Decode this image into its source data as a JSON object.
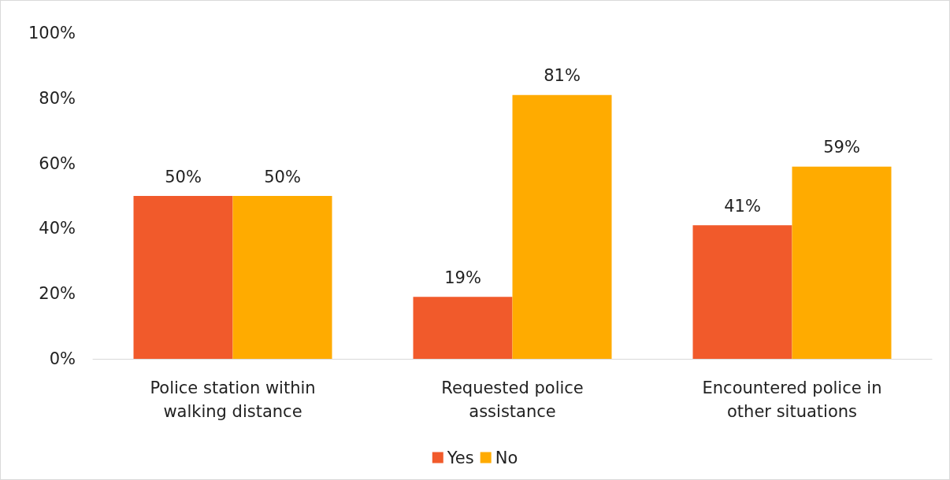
{
  "chart_data": {
    "type": "bar",
    "categories": [
      "Police station within\nwalking distance",
      "Requested police\nassistance",
      "Encountered police in\nother situations"
    ],
    "series": [
      {
        "name": "Yes",
        "color": "#f15a2b",
        "values": [
          50,
          19,
          41
        ],
        "value_labels": [
          "50%",
          "19%",
          "41%"
        ]
      },
      {
        "name": "No",
        "color": "#ffab00",
        "values": [
          50,
          81,
          59
        ],
        "value_labels": [
          "50%",
          "81%",
          "59%"
        ]
      }
    ],
    "ylim": [
      0,
      100
    ],
    "yticks": [
      {
        "value": 0,
        "label": "0%"
      },
      {
        "value": 20,
        "label": "20%"
      },
      {
        "value": 40,
        "label": "40%"
      },
      {
        "value": 60,
        "label": "60%"
      },
      {
        "value": 80,
        "label": "80%"
      },
      {
        "value": 100,
        "label": "100%"
      }
    ],
    "grid": false,
    "legend": "bottom"
  }
}
